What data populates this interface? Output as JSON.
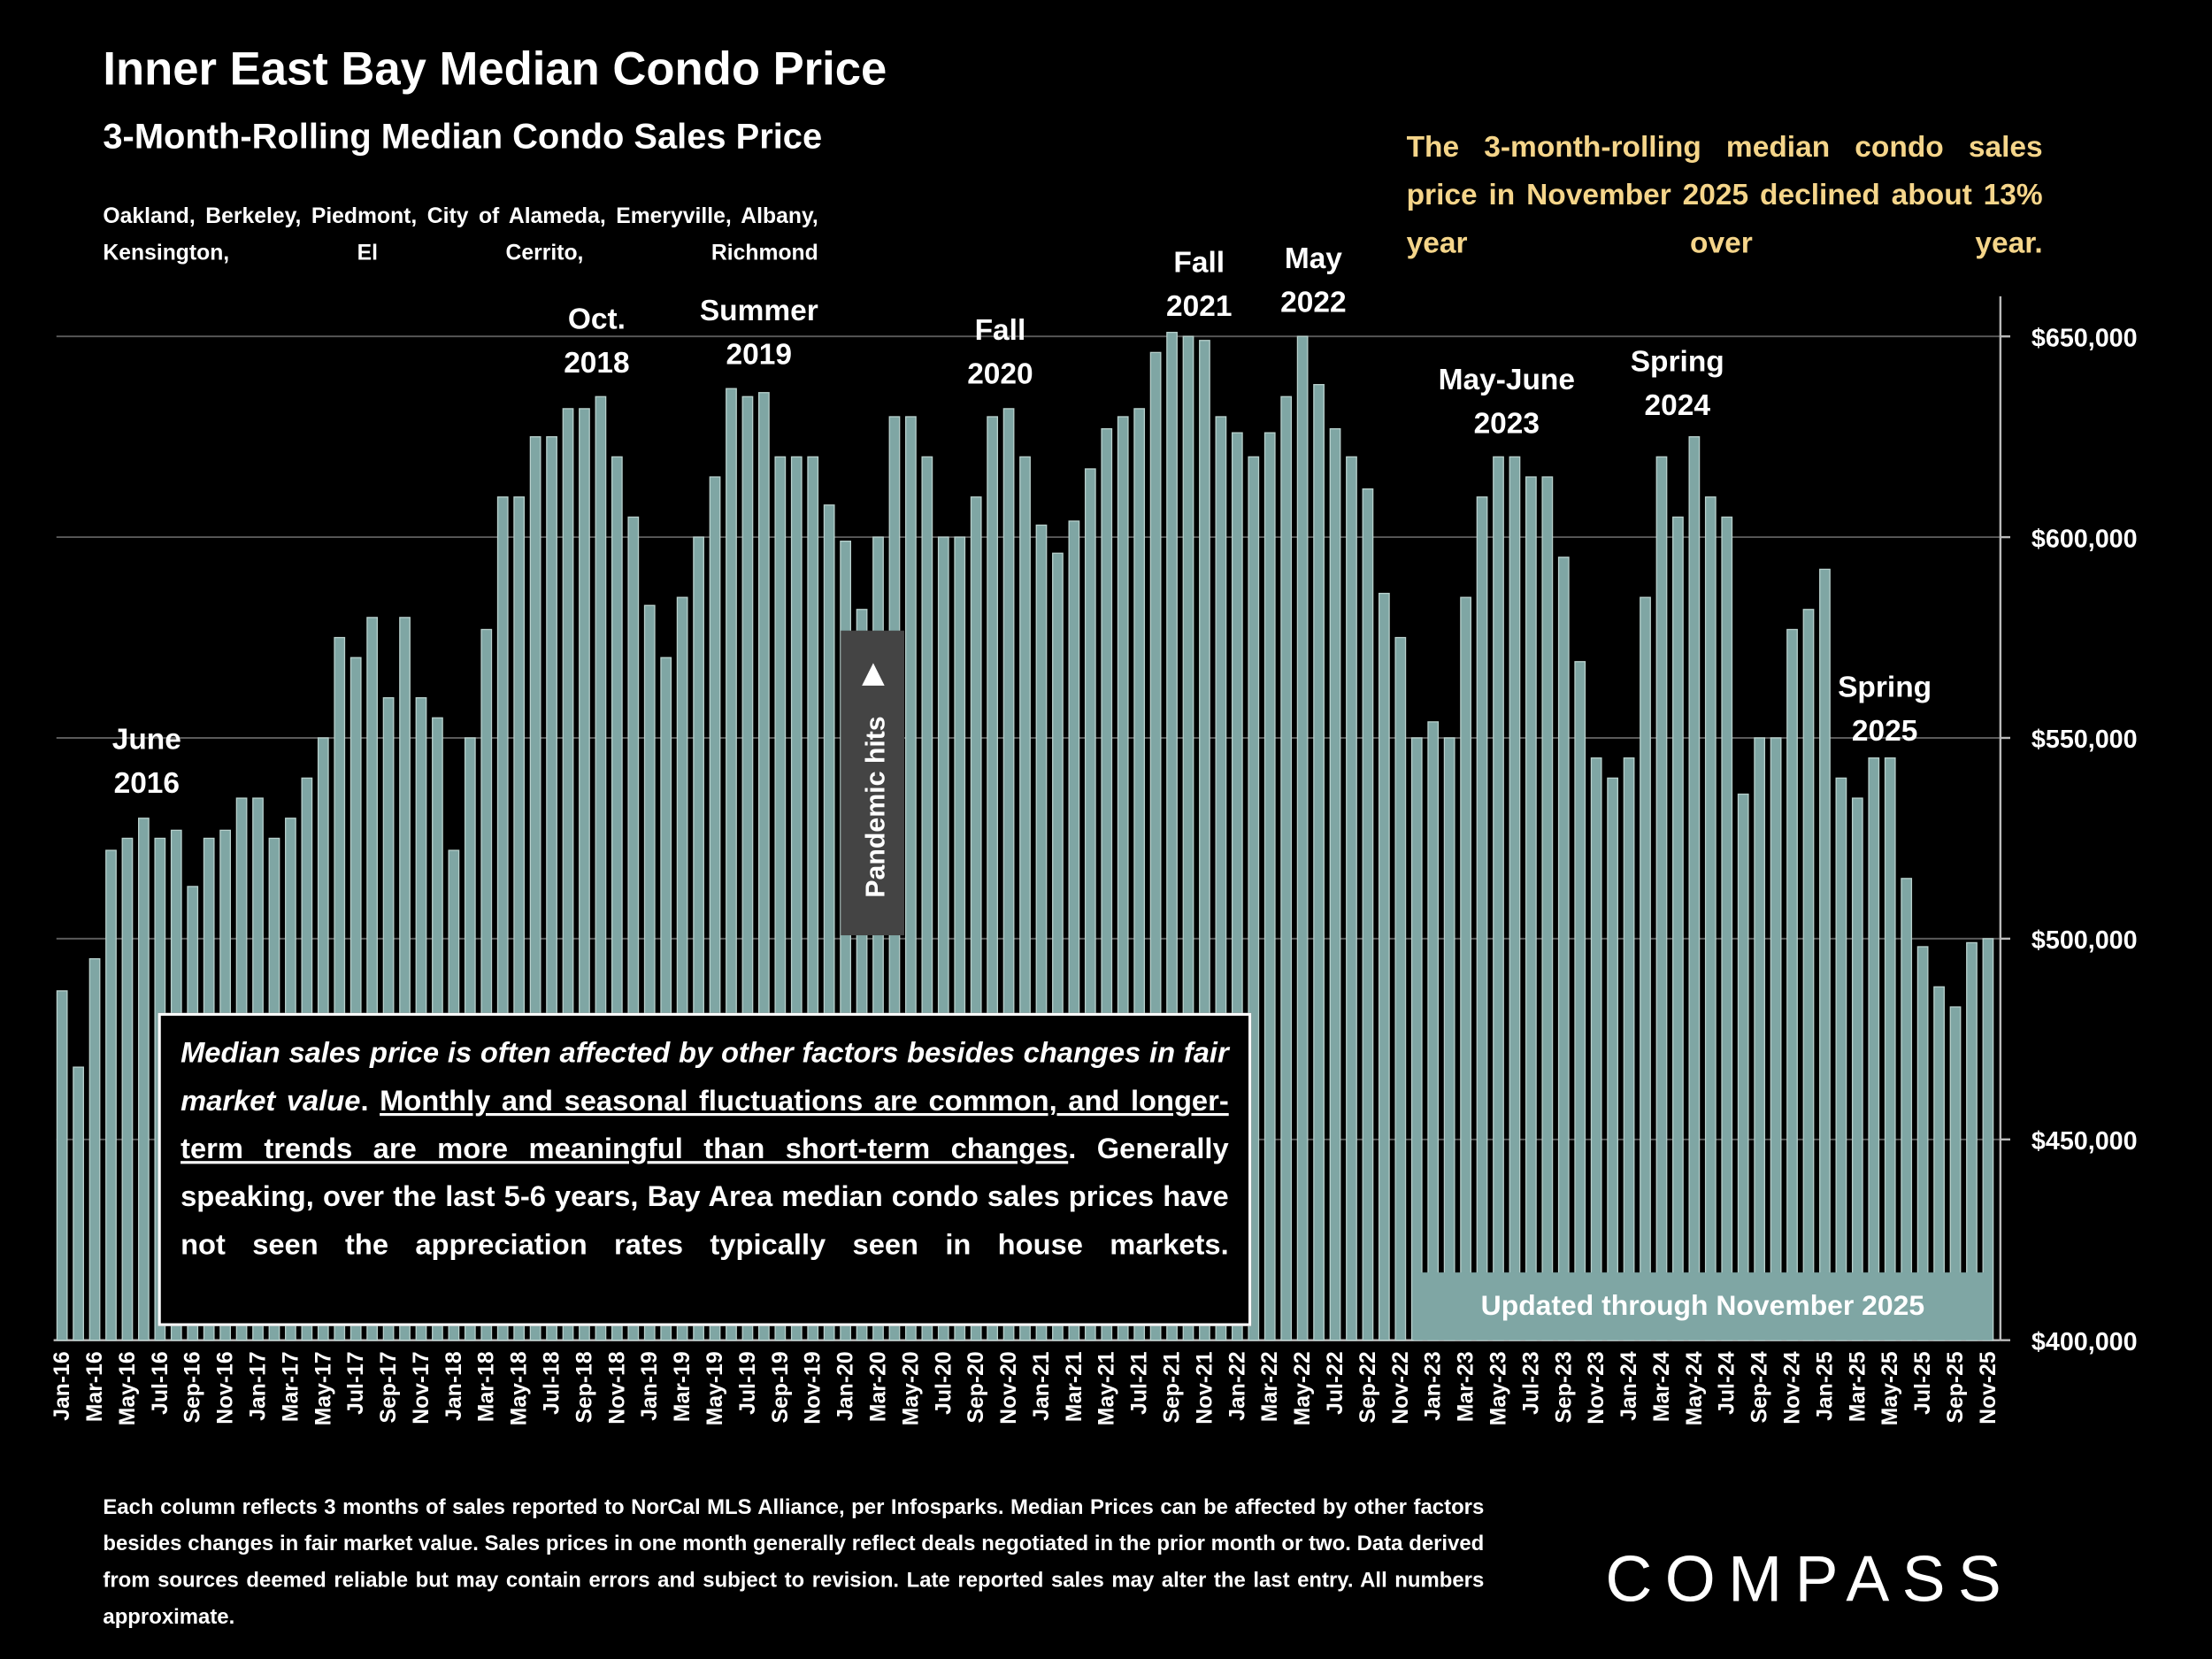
{
  "chart_data": {
    "type": "bar",
    "title": "Inner East Bay Median Condo Price",
    "subtitle": "3-Month-Rolling Median Condo Sales Price",
    "cities": "Oakland, Berkeley, Piedmont, City of Alameda, Emeryville, Albany, Kensington, El Cerrito, Richmond",
    "callout": "The 3-month-rolling median condo sales price in November 2025 declined about 13% year over year.",
    "updated": "Updated through November 2025",
    "pandemic": "Pandemic hits",
    "note": [
      "Median sales price is often affected by other factors besides changes in fair market value",
      ". ",
      "Monthly and seasonal fluctuations are common, and longer-term trends are more meaningful than short-term changes",
      ". Generally speaking, over the last 5-6 years, Bay Area median condo sales prices have not seen the appreciation rates typically seen in house markets."
    ],
    "footnote": "Each column reflects 3 months of sales reported to NorCal MLS Alliance, per Infosparks. Median Prices can be affected by other factors besides changes in fair market value. Sales prices in one month generally reflect deals negotiated in the prior month or two. Data derived from sources deemed reliable but may contain errors and subject to revision. Late reported sales may alter the last entry. All numbers approximate.",
    "logo": "COMPASS",
    "annotations": [
      [
        "June",
        "2016"
      ],
      [
        "Oct.",
        "2018"
      ],
      [
        "Summer",
        "2019"
      ],
      [
        "Fall",
        "2020"
      ],
      [
        "Fall",
        "2021"
      ],
      [
        "May",
        "2022"
      ],
      [
        "May-June",
        "2023"
      ],
      [
        "Spring",
        "2024"
      ],
      [
        "Spring",
        "2025"
      ]
    ],
    "categories": [
      "Jan-16",
      null,
      "Mar-16",
      null,
      "May-16",
      null,
      "Jul-16",
      null,
      "Sep-16",
      null,
      "Nov-16",
      null,
      "Jan-17",
      null,
      "Mar-17",
      null,
      "May-17",
      null,
      "Jul-17",
      null,
      "Sep-17",
      null,
      "Nov-17",
      null,
      "Jan-18",
      null,
      "Mar-18",
      null,
      "May-18",
      null,
      "Jul-18",
      null,
      "Sep-18",
      null,
      "Nov-18",
      null,
      "Jan-19",
      null,
      "Mar-19",
      null,
      "May-19",
      null,
      "Jul-19",
      null,
      "Sep-19",
      null,
      "Nov-19",
      null,
      "Jan-20",
      null,
      "Mar-20",
      null,
      "May-20",
      null,
      "Jul-20",
      null,
      "Sep-20",
      null,
      "Nov-20",
      null,
      "Jan-21",
      null,
      "Mar-21",
      null,
      "May-21",
      null,
      "Jul-21",
      null,
      "Sep-21",
      null,
      "Nov-21",
      null,
      "Jan-22",
      null,
      "Mar-22",
      null,
      "May-22",
      null,
      "Jul-22",
      null,
      "Sep-22",
      null,
      "Nov-22",
      null,
      "Jan-23",
      null,
      "Mar-23",
      null,
      "May-23",
      null,
      "Jul-23",
      null,
      "Sep-23",
      null,
      "Nov-23",
      null,
      "Jan-24",
      null,
      "Mar-24",
      null,
      "May-24",
      null,
      "Jul-24",
      null,
      "Sep-24",
      null,
      "Nov-24",
      null,
      "Jan-25",
      null,
      "Mar-25",
      null,
      "May-25",
      null,
      "Jul-25",
      null,
      "Sep-25",
      null,
      "Nov-25"
    ],
    "values": [
      487000,
      468000,
      495000,
      522000,
      525000,
      530000,
      525000,
      527000,
      513000,
      525000,
      527000,
      535000,
      535000,
      525000,
      530000,
      540000,
      550000,
      575000,
      570000,
      580000,
      560000,
      580000,
      560000,
      555000,
      522000,
      550000,
      577000,
      610000,
      610000,
      625000,
      625000,
      632000,
      632000,
      635000,
      620000,
      605000,
      583000,
      570000,
      585000,
      600000,
      615000,
      637000,
      635000,
      636000,
      620000,
      620000,
      620000,
      608000,
      599000,
      582000,
      600000,
      630000,
      630000,
      620000,
      600000,
      600000,
      610000,
      630000,
      632000,
      620000,
      603000,
      596000,
      604000,
      617000,
      627000,
      630000,
      632000,
      646000,
      651000,
      650000,
      649000,
      630000,
      626000,
      620000,
      626000,
      635000,
      650000,
      638000,
      627000,
      620000,
      612000,
      586000,
      575000,
      550000,
      554000,
      550000,
      585000,
      610000,
      620000,
      620000,
      615000,
      615000,
      595000,
      569000,
      545000,
      540000,
      545000,
      585000,
      620000,
      605000,
      625000,
      610000,
      605000,
      536000,
      550000,
      550000,
      577000,
      582000,
      592000,
      540000,
      535000,
      545000,
      545000,
      515000,
      498000,
      488000,
      483000,
      499000,
      500000
    ],
    "color": "#7fa6a4",
    "ylim": [
      400000,
      660000
    ],
    "yticks": [
      {
        "value": 400000,
        "label": "$400,000"
      },
      {
        "value": 450000,
        "label": "$450,000"
      },
      {
        "value": 500000,
        "label": "$500,000"
      },
      {
        "value": 550000,
        "label": "$550,000"
      },
      {
        "value": 600000,
        "label": "$600,000"
      },
      {
        "value": 650000,
        "label": "$650,000"
      }
    ],
    "grid": true
  }
}
